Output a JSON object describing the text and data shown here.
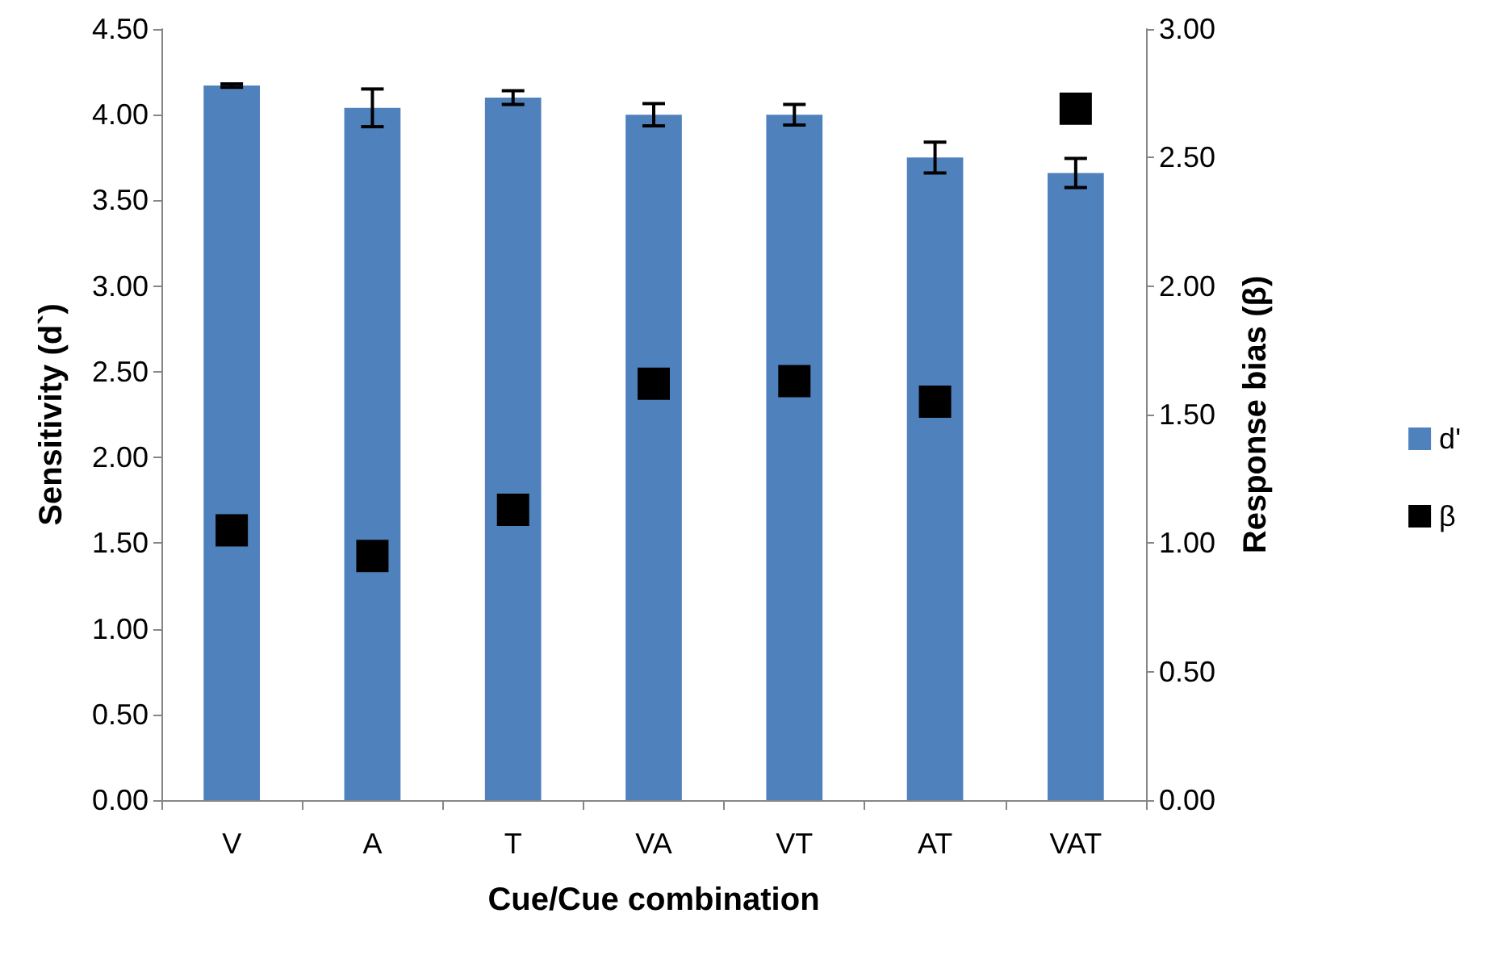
{
  "chart_data": {
    "type": "bar",
    "xlabel": "Cue/Cue combination",
    "ylabel": "Sensitivity (d`)",
    "y2label": "Response bias (β)",
    "categories": [
      "V",
      "A",
      "T",
      "VA",
      "VT",
      "AT",
      "VAT"
    ],
    "series": [
      {
        "name": "d'",
        "color": "#4f81bd",
        "values": [
          4.17,
          4.04,
          4.1,
          4.0,
          4.0,
          3.75,
          3.66
        ],
        "errors": [
          0.01,
          0.11,
          0.04,
          0.065,
          0.06,
          0.09,
          0.085
        ]
      },
      {
        "name": "β",
        "type": "scatter",
        "axis": "y2",
        "color": "#000000",
        "marker": "square",
        "x": [
          "V",
          "A",
          "T",
          "VA",
          "VT",
          "AT",
          "VAT"
        ],
        "values": [
          1.05,
          0.95,
          1.13,
          1.62,
          1.63,
          1.55,
          2.69
        ]
      }
    ],
    "ylim": [
      0,
      4.5
    ],
    "yticks": [
      {
        "value": 0,
        "label": "0.00"
      },
      {
        "value": 0.5,
        "label": "0.50"
      },
      {
        "value": 1,
        "label": "1.00"
      },
      {
        "value": 1.5,
        "label": "1.50"
      },
      {
        "value": 2,
        "label": "2.00"
      },
      {
        "value": 2.5,
        "label": "2.50"
      },
      {
        "value": 3,
        "label": "3.00"
      },
      {
        "value": 3.5,
        "label": "3.50"
      },
      {
        "value": 4,
        "label": "4.00"
      },
      {
        "value": 4.5,
        "label": "4.50"
      }
    ],
    "y2lim": [
      0,
      3
    ],
    "y2ticks": [
      {
        "value": 0,
        "label": "0.00"
      },
      {
        "value": 0.5,
        "label": "0.50"
      },
      {
        "value": 1,
        "label": "1.00"
      },
      {
        "value": 1.5,
        "label": "1.50"
      },
      {
        "value": 2,
        "label": "2.00"
      },
      {
        "value": 2.5,
        "label": "2.50"
      },
      {
        "value": 3,
        "label": "3.00"
      }
    ],
    "grid": false,
    "legend": "right"
  }
}
